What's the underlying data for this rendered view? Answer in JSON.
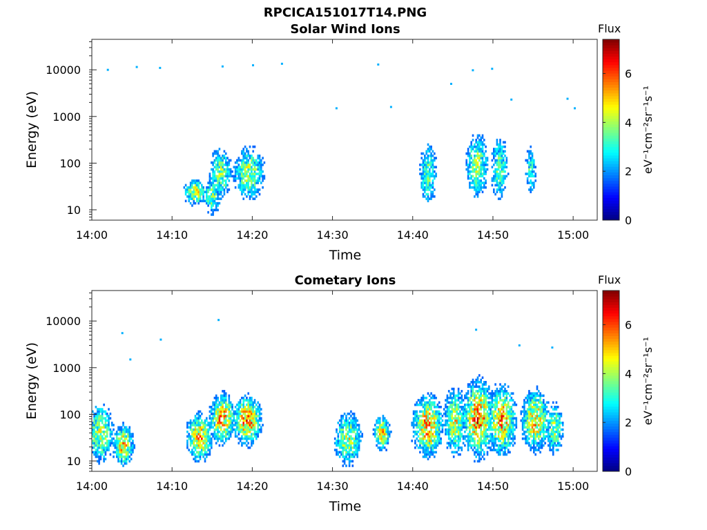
{
  "figure": {
    "title": "RPCICA151017T14.PNG"
  },
  "chart_data": [
    {
      "type": "heatmap",
      "title": "Solar Wind Ions",
      "xlabel": "Time",
      "ylabel": "Energy (eV)",
      "xlim": [
        "14:00",
        "15:03"
      ],
      "ylim": [
        6,
        45000
      ],
      "yscale": "log",
      "x_ticks": [
        "14:00",
        "14:10",
        "14:20",
        "14:30",
        "14:40",
        "14:50",
        "15:00"
      ],
      "y_ticks": [
        "10",
        "100",
        "1000",
        "10000"
      ],
      "grid": false,
      "colorbar": {
        "label": "Flux",
        "unit": "eV⁻¹cm⁻²sr⁻¹s⁻¹",
        "ticks": [
          "0",
          "2",
          "4",
          "6"
        ],
        "range": [
          0,
          7.4
        ],
        "colormap": "jet"
      },
      "bursts": [
        {
          "t": 14.9,
          "e": 20,
          "w": 0.8,
          "sd": 0.3,
          "v": 4.2
        },
        {
          "t": 12.8,
          "e": 24,
          "w": 1.0,
          "sd": 0.2,
          "v": 5.0
        },
        {
          "t": 16.0,
          "e": 60,
          "w": 1.0,
          "sd": 0.4,
          "v": 4.4
        },
        {
          "t": 19.5,
          "e": 60,
          "w": 1.4,
          "sd": 0.4,
          "v": 4.6
        },
        {
          "t": 41.8,
          "e": 60,
          "w": 0.8,
          "sd": 0.5,
          "v": 4.0
        },
        {
          "t": 47.9,
          "e": 90,
          "w": 1.0,
          "sd": 0.5,
          "v": 4.5
        },
        {
          "t": 50.7,
          "e": 80,
          "w": 0.8,
          "sd": 0.5,
          "v": 4.0
        },
        {
          "t": 54.6,
          "e": 70,
          "w": 0.5,
          "sd": 0.4,
          "v": 3.6
        }
      ],
      "scatter": [
        {
          "t": 2.0,
          "e": 10000
        },
        {
          "t": 5.6,
          "e": 11500
        },
        {
          "t": 8.5,
          "e": 11000
        },
        {
          "t": 16.3,
          "e": 11800
        },
        {
          "t": 20.1,
          "e": 12500
        },
        {
          "t": 23.7,
          "e": 13500
        },
        {
          "t": 35.7,
          "e": 13000
        },
        {
          "t": 47.5,
          "e": 9800
        },
        {
          "t": 49.9,
          "e": 10500
        },
        {
          "t": 44.8,
          "e": 5000
        },
        {
          "t": 59.3,
          "e": 2400
        },
        {
          "t": 52.3,
          "e": 2300
        },
        {
          "t": 60.2,
          "e": 1500
        },
        {
          "t": 30.5,
          "e": 1500
        },
        {
          "t": 37.3,
          "e": 1600
        }
      ]
    },
    {
      "type": "heatmap",
      "title": "Cometary Ions",
      "xlabel": "Time",
      "ylabel": "Energy (eV)",
      "xlim": [
        "14:00",
        "15:03"
      ],
      "ylim": [
        6,
        45000
      ],
      "yscale": "log",
      "x_ticks": [
        "14:00",
        "14:10",
        "14:20",
        "14:30",
        "14:40",
        "14:50",
        "15:00"
      ],
      "y_ticks": [
        "10",
        "100",
        "1000",
        "10000"
      ],
      "grid": false,
      "colorbar": {
        "label": "Flux",
        "unit": "eV⁻¹cm⁻²sr⁻¹s⁻¹",
        "ticks": [
          "0",
          "2",
          "4",
          "6"
        ],
        "range": [
          0,
          7.4
        ],
        "colormap": "jet"
      },
      "bursts": [
        {
          "t": 1.0,
          "e": 40,
          "w": 1.2,
          "sd": 0.45,
          "v": 4.6
        },
        {
          "t": 3.8,
          "e": 22,
          "w": 0.9,
          "sd": 0.3,
          "v": 5.6
        },
        {
          "t": 13.3,
          "e": 32,
          "w": 1.1,
          "sd": 0.35,
          "v": 5.8
        },
        {
          "t": 16.2,
          "e": 80,
          "w": 1.1,
          "sd": 0.35,
          "v": 6.1
        },
        {
          "t": 19.3,
          "e": 75,
          "w": 1.2,
          "sd": 0.35,
          "v": 6.3
        },
        {
          "t": 31.8,
          "e": 30,
          "w": 1.2,
          "sd": 0.4,
          "v": 4.8
        },
        {
          "t": 36.1,
          "e": 40,
          "w": 0.7,
          "sd": 0.25,
          "v": 5.6
        },
        {
          "t": 41.8,
          "e": 55,
          "w": 1.3,
          "sd": 0.45,
          "v": 6.0
        },
        {
          "t": 45.2,
          "e": 70,
          "w": 1.0,
          "sd": 0.5,
          "v": 5.0
        },
        {
          "t": 48.1,
          "e": 80,
          "w": 1.3,
          "sd": 0.55,
          "v": 6.4
        },
        {
          "t": 51.0,
          "e": 75,
          "w": 1.2,
          "sd": 0.5,
          "v": 6.0
        },
        {
          "t": 55.2,
          "e": 75,
          "w": 1.2,
          "sd": 0.45,
          "v": 5.6
        },
        {
          "t": 57.6,
          "e": 50,
          "w": 0.8,
          "sd": 0.4,
          "v": 4.4
        }
      ],
      "scatter": [
        {
          "t": 3.8,
          "e": 5500
        },
        {
          "t": 4.8,
          "e": 1500
        },
        {
          "t": 8.6,
          "e": 4000
        },
        {
          "t": 15.8,
          "e": 10500
        },
        {
          "t": 47.9,
          "e": 6500
        },
        {
          "t": 53.3,
          "e": 3000
        },
        {
          "t": 57.4,
          "e": 2700
        }
      ]
    }
  ]
}
